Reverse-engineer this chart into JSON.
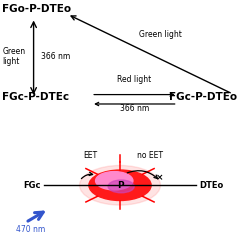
{
  "bg_color": "#ffffff",
  "label_FGo_P_DTEo": "FGo-P-DTEo",
  "label_FGc_P_DTEc": "FGc-P-DTEc",
  "label_FGc_P_DTEo": "FGc-P-DTEo",
  "label_green_light_left": "Green\nlight",
  "label_366nm_left": "366 nm",
  "label_green_light_diag": "Green light",
  "label_red_light": "Red light",
  "label_366nm_bottom": "366 nm",
  "label_EET": "EET",
  "label_no_EET": "no EET",
  "label_FGc": "FGc",
  "label_P": "P",
  "label_DTEo": "DTEo",
  "label_470nm": "470 nm",
  "ray_color": "#ff0000",
  "arrow_blue_color": "#3355cc",
  "bold_fontsize": 7.5,
  "small_fontsize": 5.5
}
